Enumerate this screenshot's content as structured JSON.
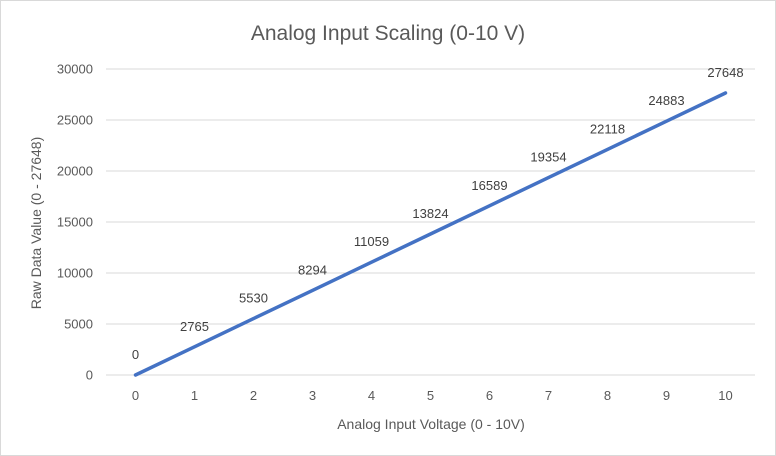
{
  "chart_data": {
    "type": "line",
    "title": "Analog Input Scaling (0-10 V)",
    "xlabel": "Analog Input Voltage (0 - 10V)",
    "ylabel": "Raw Data Value (0 - 27648)",
    "x": [
      0,
      1,
      2,
      3,
      4,
      5,
      6,
      7,
      8,
      9,
      10
    ],
    "series": [
      {
        "values": [
          0,
          2765,
          5530,
          8294,
          11059,
          13824,
          16589,
          19354,
          22118,
          24883,
          27648
        ]
      }
    ],
    "xlim": [
      0,
      10
    ],
    "ylim": [
      0,
      30000
    ],
    "yticks": [
      0,
      5000,
      10000,
      15000,
      20000,
      25000,
      30000
    ],
    "xticks": [
      0,
      1,
      2,
      3,
      4,
      5,
      6,
      7,
      8,
      9,
      10
    ],
    "grid": "horizontal",
    "legend": "none",
    "line_color": "#4472c4",
    "data_labels": true
  }
}
